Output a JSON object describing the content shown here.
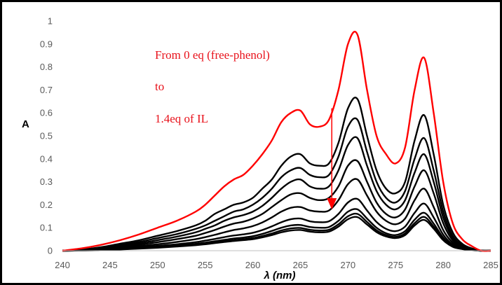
{
  "chart_data": {
    "type": "line",
    "xlabel": "λ (nm)",
    "ylabel": "A",
    "xlim": [
      240,
      285
    ],
    "ylim": [
      0,
      1
    ],
    "x_ticks": [
      "240",
      "245",
      "250",
      "255",
      "260",
      "265",
      "270",
      "275",
      "280",
      "285"
    ],
    "y_ticks": [
      "0",
      "0.1",
      "0.2",
      "0.3",
      "0.4",
      "0.5",
      "0.6",
      "0.7",
      "0.8",
      "0.9",
      "1"
    ],
    "grid": false,
    "legend": "none",
    "annotations": {
      "line1": "From 0 eq (free-phenol)",
      "line2": "to",
      "line3": "1.4eq of IL"
    },
    "arrow": {
      "x": 268.3,
      "from_y": 0.62,
      "to_y": 0.18,
      "color": "#ff0000"
    },
    "x": [
      240,
      242,
      244,
      246,
      248,
      250,
      252,
      254,
      255,
      256,
      257,
      258,
      259,
      260,
      261,
      262,
      263,
      264,
      265,
      266,
      267,
      268,
      269,
      270,
      271,
      272,
      273,
      274,
      275,
      276,
      277,
      278,
      279,
      280,
      281,
      282,
      283,
      284,
      285
    ],
    "series": [
      {
        "color": "#ff0000",
        "values": [
          0.0,
          0.01,
          0.025,
          0.045,
          0.07,
          0.1,
          0.13,
          0.17,
          0.2,
          0.24,
          0.28,
          0.31,
          0.33,
          0.37,
          0.42,
          0.48,
          0.56,
          0.6,
          0.61,
          0.55,
          0.54,
          0.57,
          0.7,
          0.9,
          0.94,
          0.7,
          0.5,
          0.42,
          0.38,
          0.45,
          0.7,
          0.84,
          0.6,
          0.3,
          0.12,
          0.05,
          0.02,
          0.0,
          0.0
        ]
      },
      {
        "color": "#000000",
        "values": [
          0.0,
          0.005,
          0.015,
          0.03,
          0.045,
          0.065,
          0.085,
          0.11,
          0.13,
          0.16,
          0.18,
          0.2,
          0.21,
          0.23,
          0.27,
          0.31,
          0.37,
          0.41,
          0.42,
          0.38,
          0.37,
          0.38,
          0.47,
          0.62,
          0.66,
          0.5,
          0.35,
          0.27,
          0.25,
          0.3,
          0.48,
          0.59,
          0.42,
          0.2,
          0.08,
          0.03,
          0.01,
          0.0,
          0.0
        ]
      },
      {
        "color": "#000000",
        "values": [
          0.0,
          0.004,
          0.012,
          0.025,
          0.038,
          0.055,
          0.072,
          0.095,
          0.11,
          0.13,
          0.15,
          0.17,
          0.18,
          0.2,
          0.23,
          0.27,
          0.32,
          0.35,
          0.36,
          0.33,
          0.32,
          0.33,
          0.41,
          0.54,
          0.57,
          0.43,
          0.3,
          0.23,
          0.21,
          0.26,
          0.4,
          0.49,
          0.35,
          0.17,
          0.065,
          0.025,
          0.01,
          0.0,
          0.0
        ]
      },
      {
        "color": "#000000",
        "values": [
          0.0,
          0.003,
          0.01,
          0.02,
          0.032,
          0.046,
          0.061,
          0.08,
          0.095,
          0.11,
          0.13,
          0.145,
          0.155,
          0.17,
          0.195,
          0.23,
          0.27,
          0.3,
          0.31,
          0.28,
          0.27,
          0.28,
          0.35,
          0.46,
          0.49,
          0.37,
          0.26,
          0.2,
          0.18,
          0.22,
          0.34,
          0.42,
          0.3,
          0.145,
          0.055,
          0.02,
          0.008,
          0.0,
          0.0
        ]
      },
      {
        "color": "#000000",
        "values": [
          0.0,
          0.002,
          0.008,
          0.016,
          0.026,
          0.037,
          0.05,
          0.065,
          0.077,
          0.09,
          0.105,
          0.118,
          0.126,
          0.14,
          0.16,
          0.19,
          0.22,
          0.245,
          0.25,
          0.23,
          0.22,
          0.23,
          0.28,
          0.37,
          0.39,
          0.3,
          0.21,
          0.16,
          0.145,
          0.18,
          0.28,
          0.35,
          0.25,
          0.12,
          0.045,
          0.018,
          0.006,
          0.0,
          0.0
        ]
      },
      {
        "color": "#000000",
        "values": [
          0.0,
          0.002,
          0.006,
          0.012,
          0.02,
          0.028,
          0.038,
          0.05,
          0.059,
          0.069,
          0.08,
          0.09,
          0.097,
          0.107,
          0.123,
          0.145,
          0.17,
          0.187,
          0.19,
          0.175,
          0.17,
          0.175,
          0.22,
          0.29,
          0.31,
          0.24,
          0.17,
          0.13,
          0.115,
          0.14,
          0.22,
          0.27,
          0.19,
          0.09,
          0.035,
          0.014,
          0.005,
          0.0,
          0.0
        ]
      },
      {
        "color": "#000000",
        "values": [
          0.0,
          0.001,
          0.004,
          0.009,
          0.015,
          0.021,
          0.028,
          0.037,
          0.044,
          0.051,
          0.059,
          0.066,
          0.071,
          0.078,
          0.09,
          0.106,
          0.124,
          0.137,
          0.14,
          0.128,
          0.124,
          0.128,
          0.16,
          0.21,
          0.225,
          0.175,
          0.125,
          0.095,
          0.085,
          0.105,
          0.165,
          0.205,
          0.145,
          0.07,
          0.027,
          0.011,
          0.004,
          0.0,
          0.0
        ]
      },
      {
        "color": "#000000",
        "values": [
          0.0,
          0.001,
          0.003,
          0.007,
          0.012,
          0.017,
          0.023,
          0.03,
          0.035,
          0.041,
          0.047,
          0.053,
          0.057,
          0.063,
          0.073,
          0.086,
          0.1,
          0.11,
          0.112,
          0.103,
          0.1,
          0.103,
          0.13,
          0.17,
          0.18,
          0.14,
          0.1,
          0.076,
          0.068,
          0.085,
          0.135,
          0.165,
          0.118,
          0.057,
          0.022,
          0.009,
          0.003,
          0.0,
          0.0
        ]
      },
      {
        "color": "#000000",
        "values": [
          0.0,
          0.001,
          0.003,
          0.006,
          0.01,
          0.015,
          0.02,
          0.026,
          0.031,
          0.036,
          0.041,
          0.046,
          0.05,
          0.055,
          0.064,
          0.075,
          0.088,
          0.097,
          0.099,
          0.091,
          0.088,
          0.091,
          0.115,
          0.15,
          0.16,
          0.125,
          0.089,
          0.068,
          0.06,
          0.075,
          0.12,
          0.147,
          0.105,
          0.05,
          0.019,
          0.008,
          0.003,
          0.0,
          0.0
        ]
      },
      {
        "color": "#000000",
        "values": [
          0.0,
          0.001,
          0.002,
          0.005,
          0.009,
          0.013,
          0.018,
          0.024,
          0.028,
          0.033,
          0.038,
          0.042,
          0.046,
          0.05,
          0.058,
          0.068,
          0.08,
          0.088,
          0.09,
          0.083,
          0.08,
          0.083,
          0.105,
          0.137,
          0.146,
          0.114,
          0.081,
          0.062,
          0.055,
          0.068,
          0.11,
          0.134,
          0.096,
          0.046,
          0.017,
          0.007,
          0.002,
          0.0,
          0.0
        ]
      }
    ]
  }
}
